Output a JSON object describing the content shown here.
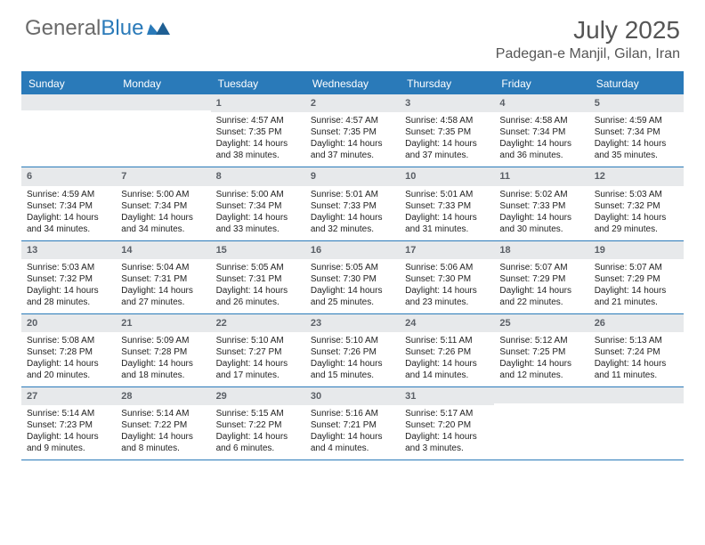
{
  "logo": {
    "text1": "General",
    "text2": "Blue"
  },
  "title": "July 2025",
  "location": "Padegan-e Manjil, Gilan, Iran",
  "colors": {
    "accent": "#2a7ab9",
    "header_bg": "#e7e9eb",
    "text": "#333333",
    "muted": "#6a6a6a",
    "background": "#ffffff"
  },
  "day_names": [
    "Sunday",
    "Monday",
    "Tuesday",
    "Wednesday",
    "Thursday",
    "Friday",
    "Saturday"
  ],
  "weeks": [
    [
      null,
      null,
      {
        "n": "1",
        "sr": "Sunrise: 4:57 AM",
        "ss": "Sunset: 7:35 PM",
        "dl": "Daylight: 14 hours and 38 minutes."
      },
      {
        "n": "2",
        "sr": "Sunrise: 4:57 AM",
        "ss": "Sunset: 7:35 PM",
        "dl": "Daylight: 14 hours and 37 minutes."
      },
      {
        "n": "3",
        "sr": "Sunrise: 4:58 AM",
        "ss": "Sunset: 7:35 PM",
        "dl": "Daylight: 14 hours and 37 minutes."
      },
      {
        "n": "4",
        "sr": "Sunrise: 4:58 AM",
        "ss": "Sunset: 7:34 PM",
        "dl": "Daylight: 14 hours and 36 minutes."
      },
      {
        "n": "5",
        "sr": "Sunrise: 4:59 AM",
        "ss": "Sunset: 7:34 PM",
        "dl": "Daylight: 14 hours and 35 minutes."
      }
    ],
    [
      {
        "n": "6",
        "sr": "Sunrise: 4:59 AM",
        "ss": "Sunset: 7:34 PM",
        "dl": "Daylight: 14 hours and 34 minutes."
      },
      {
        "n": "7",
        "sr": "Sunrise: 5:00 AM",
        "ss": "Sunset: 7:34 PM",
        "dl": "Daylight: 14 hours and 34 minutes."
      },
      {
        "n": "8",
        "sr": "Sunrise: 5:00 AM",
        "ss": "Sunset: 7:34 PM",
        "dl": "Daylight: 14 hours and 33 minutes."
      },
      {
        "n": "9",
        "sr": "Sunrise: 5:01 AM",
        "ss": "Sunset: 7:33 PM",
        "dl": "Daylight: 14 hours and 32 minutes."
      },
      {
        "n": "10",
        "sr": "Sunrise: 5:01 AM",
        "ss": "Sunset: 7:33 PM",
        "dl": "Daylight: 14 hours and 31 minutes."
      },
      {
        "n": "11",
        "sr": "Sunrise: 5:02 AM",
        "ss": "Sunset: 7:33 PM",
        "dl": "Daylight: 14 hours and 30 minutes."
      },
      {
        "n": "12",
        "sr": "Sunrise: 5:03 AM",
        "ss": "Sunset: 7:32 PM",
        "dl": "Daylight: 14 hours and 29 minutes."
      }
    ],
    [
      {
        "n": "13",
        "sr": "Sunrise: 5:03 AM",
        "ss": "Sunset: 7:32 PM",
        "dl": "Daylight: 14 hours and 28 minutes."
      },
      {
        "n": "14",
        "sr": "Sunrise: 5:04 AM",
        "ss": "Sunset: 7:31 PM",
        "dl": "Daylight: 14 hours and 27 minutes."
      },
      {
        "n": "15",
        "sr": "Sunrise: 5:05 AM",
        "ss": "Sunset: 7:31 PM",
        "dl": "Daylight: 14 hours and 26 minutes."
      },
      {
        "n": "16",
        "sr": "Sunrise: 5:05 AM",
        "ss": "Sunset: 7:30 PM",
        "dl": "Daylight: 14 hours and 25 minutes."
      },
      {
        "n": "17",
        "sr": "Sunrise: 5:06 AM",
        "ss": "Sunset: 7:30 PM",
        "dl": "Daylight: 14 hours and 23 minutes."
      },
      {
        "n": "18",
        "sr": "Sunrise: 5:07 AM",
        "ss": "Sunset: 7:29 PM",
        "dl": "Daylight: 14 hours and 22 minutes."
      },
      {
        "n": "19",
        "sr": "Sunrise: 5:07 AM",
        "ss": "Sunset: 7:29 PM",
        "dl": "Daylight: 14 hours and 21 minutes."
      }
    ],
    [
      {
        "n": "20",
        "sr": "Sunrise: 5:08 AM",
        "ss": "Sunset: 7:28 PM",
        "dl": "Daylight: 14 hours and 20 minutes."
      },
      {
        "n": "21",
        "sr": "Sunrise: 5:09 AM",
        "ss": "Sunset: 7:28 PM",
        "dl": "Daylight: 14 hours and 18 minutes."
      },
      {
        "n": "22",
        "sr": "Sunrise: 5:10 AM",
        "ss": "Sunset: 7:27 PM",
        "dl": "Daylight: 14 hours and 17 minutes."
      },
      {
        "n": "23",
        "sr": "Sunrise: 5:10 AM",
        "ss": "Sunset: 7:26 PM",
        "dl": "Daylight: 14 hours and 15 minutes."
      },
      {
        "n": "24",
        "sr": "Sunrise: 5:11 AM",
        "ss": "Sunset: 7:26 PM",
        "dl": "Daylight: 14 hours and 14 minutes."
      },
      {
        "n": "25",
        "sr": "Sunrise: 5:12 AM",
        "ss": "Sunset: 7:25 PM",
        "dl": "Daylight: 14 hours and 12 minutes."
      },
      {
        "n": "26",
        "sr": "Sunrise: 5:13 AM",
        "ss": "Sunset: 7:24 PM",
        "dl": "Daylight: 14 hours and 11 minutes."
      }
    ],
    [
      {
        "n": "27",
        "sr": "Sunrise: 5:14 AM",
        "ss": "Sunset: 7:23 PM",
        "dl": "Daylight: 14 hours and 9 minutes."
      },
      {
        "n": "28",
        "sr": "Sunrise: 5:14 AM",
        "ss": "Sunset: 7:22 PM",
        "dl": "Daylight: 14 hours and 8 minutes."
      },
      {
        "n": "29",
        "sr": "Sunrise: 5:15 AM",
        "ss": "Sunset: 7:22 PM",
        "dl": "Daylight: 14 hours and 6 minutes."
      },
      {
        "n": "30",
        "sr": "Sunrise: 5:16 AM",
        "ss": "Sunset: 7:21 PM",
        "dl": "Daylight: 14 hours and 4 minutes."
      },
      {
        "n": "31",
        "sr": "Sunrise: 5:17 AM",
        "ss": "Sunset: 7:20 PM",
        "dl": "Daylight: 14 hours and 3 minutes."
      },
      null,
      null
    ]
  ]
}
